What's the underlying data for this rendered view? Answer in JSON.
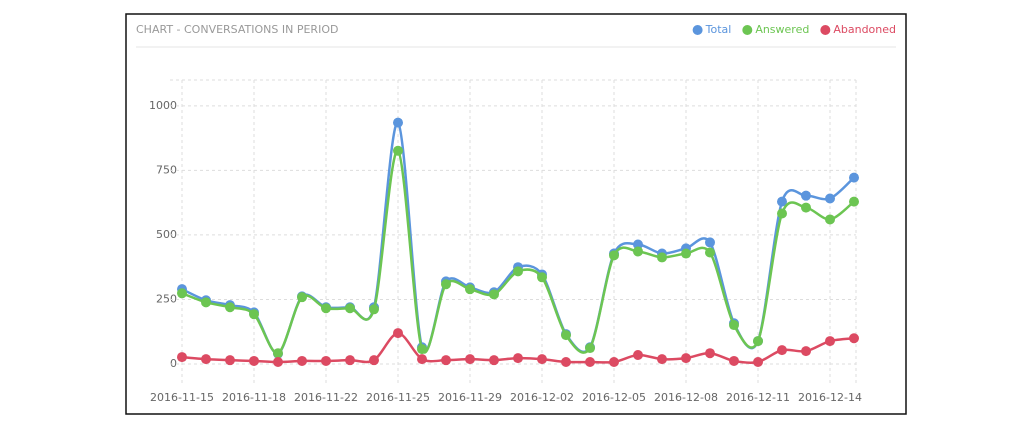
{
  "chart_data": {
    "type": "line",
    "title": "CHART - CONVERSATIONS IN PERIOD",
    "categories": [
      "2016-11-15",
      null,
      null,
      "2016-11-18",
      null,
      null,
      "2016-11-22",
      null,
      null,
      "2016-11-25",
      null,
      null,
      "2016-11-29",
      null,
      null,
      "2016-12-02",
      null,
      null,
      "2016-12-05",
      null,
      null,
      "2016-12-08",
      null,
      null,
      "2016-12-11",
      null,
      null,
      "2016-12-14",
      null
    ],
    "series": [
      {
        "name": "Total",
        "color": "#5b95dd",
        "values": [
          290,
          247,
          228,
          200,
          40,
          262,
          220,
          220,
          220,
          935,
          65,
          320,
          297,
          278,
          375,
          347,
          116,
          65,
          428,
          463,
          428,
          448,
          471,
          158,
          89,
          629,
          652,
          641,
          722
        ]
      },
      {
        "name": "Answered",
        "color": "#6cc552",
        "values": [
          274,
          239,
          220,
          193,
          42,
          259,
          216,
          216,
          212,
          826,
          58,
          309,
          290,
          270,
          359,
          336,
          112,
          62,
          421,
          436,
          413,
          428,
          432,
          151,
          89,
          583,
          606,
          560,
          629
        ]
      },
      {
        "name": "Abandoned",
        "color": "#dc4a62",
        "values": [
          27,
          19,
          15,
          12,
          8,
          12,
          12,
          15,
          15,
          120,
          19,
          15,
          19,
          15,
          23,
          19,
          8,
          8,
          8,
          35,
          19,
          23,
          42,
          12,
          8,
          54,
          50,
          89,
          100
        ]
      }
    ],
    "ylim": [
      -85,
      1100
    ],
    "yticks": [
      0,
      250,
      500,
      750,
      1000
    ],
    "grid": true,
    "legend": "top-right"
  }
}
